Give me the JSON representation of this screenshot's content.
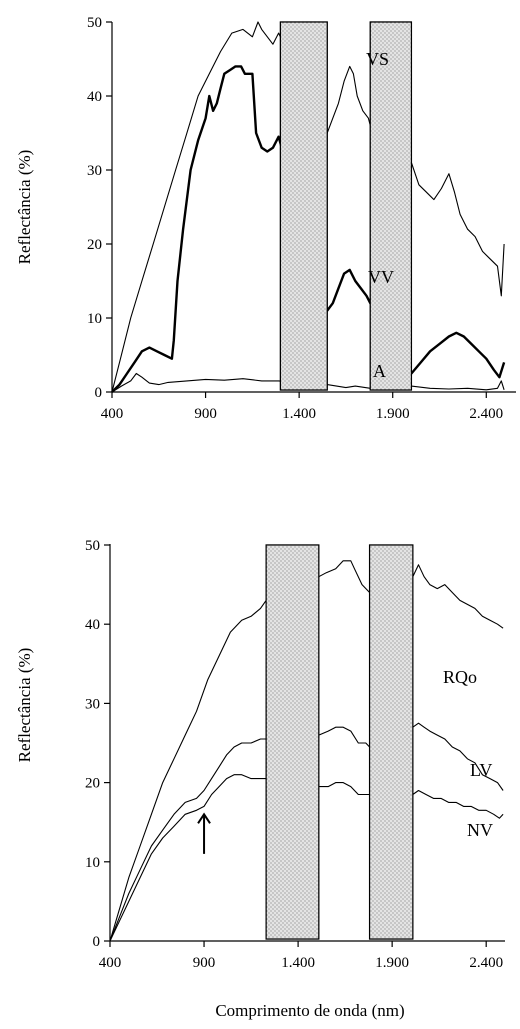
{
  "chart_data": [
    {
      "type": "line",
      "ylabel": "Reflectância (%)",
      "xlabel": "",
      "xlim": [
        400,
        2500
      ],
      "ylim": [
        0,
        50
      ],
      "xticks": [
        400,
        900,
        1400,
        1900,
        2400
      ],
      "xtick_labels": [
        "400",
        "900",
        "1.400",
        "1.900",
        "2.400"
      ],
      "yticks": [
        0,
        10,
        20,
        30,
        40,
        50
      ],
      "ytick_labels": [
        "0",
        "10",
        "20",
        "30",
        "40",
        "50"
      ],
      "absorption_bands": [
        [
          1300,
          1550
        ],
        [
          1780,
          2000
        ]
      ],
      "series": [
        {
          "name": "VS",
          "style": "thin",
          "x": [
            400,
            450,
            500,
            560,
            620,
            680,
            740,
            800,
            860,
            920,
            980,
            1040,
            1100,
            1150,
            1180,
            1200,
            1230,
            1260,
            1290,
            1550,
            1580,
            1610,
            1640,
            1670,
            1690,
            1710,
            1740,
            1770,
            1780,
            2000,
            2040,
            2080,
            2120,
            2160,
            2200,
            2230,
            2260,
            2300,
            2340,
            2380,
            2420,
            2460,
            2480,
            2495
          ],
          "y": [
            0,
            5,
            10,
            15,
            20,
            25,
            30,
            35,
            40,
            43,
            46,
            48.5,
            49,
            48,
            50,
            49,
            48,
            47,
            48.5,
            35,
            37,
            39,
            42,
            44,
            43,
            40,
            38,
            37,
            36,
            31,
            28,
            27,
            26,
            27.5,
            29.5,
            27,
            24,
            22,
            21,
            19,
            18,
            17,
            13,
            20
          ]
        },
        {
          "name": "VV",
          "style": "thick",
          "x": [
            400,
            440,
            480,
            520,
            560,
            600,
            640,
            680,
            720,
            730,
            750,
            780,
            820,
            860,
            900,
            920,
            940,
            960,
            980,
            1000,
            1030,
            1060,
            1090,
            1110,
            1150,
            1170,
            1200,
            1230,
            1260,
            1290,
            1550,
            1580,
            1610,
            1640,
            1670,
            1700,
            1730,
            1760,
            1780,
            2000,
            2050,
            2100,
            2150,
            2200,
            2240,
            2280,
            2320,
            2360,
            2400,
            2440,
            2470,
            2495
          ],
          "y": [
            0,
            1,
            2.5,
            4,
            5.5,
            6,
            5.5,
            5,
            4.5,
            7,
            15,
            22,
            30,
            34,
            37,
            40,
            38,
            39,
            41,
            43,
            43.5,
            44,
            44,
            43,
            43,
            35,
            33,
            32.5,
            33,
            34.5,
            11,
            12,
            14,
            16,
            16.5,
            15,
            14,
            13,
            12,
            2.5,
            4,
            5.5,
            6.5,
            7.5,
            8,
            7.5,
            6.5,
            5.5,
            4.5,
            3,
            2,
            4
          ]
        },
        {
          "name": "A",
          "style": "thin",
          "x": [
            400,
            450,
            500,
            530,
            560,
            600,
            650,
            700,
            800,
            900,
            1000,
            1100,
            1200,
            1290,
            1550,
            1600,
            1650,
            1700,
            1780,
            2000,
            2100,
            2200,
            2300,
            2400,
            2460,
            2480,
            2495
          ],
          "y": [
            0,
            0.8,
            1.5,
            2.5,
            2,
            1.2,
            1,
            1.3,
            1.5,
            1.7,
            1.6,
            1.8,
            1.5,
            1.5,
            1,
            0.8,
            0.6,
            0.8,
            0.5,
            0.8,
            0.5,
            0.4,
            0.5,
            0.3,
            0.5,
            1.5,
            0.3
          ]
        }
      ]
    },
    {
      "type": "line",
      "ylabel": "Reflectância (%)",
      "xlabel": "Comprimento de onda (nm)",
      "xlim": [
        400,
        2500
      ],
      "ylim": [
        0,
        50
      ],
      "xticks": [
        400,
        900,
        1400,
        1900,
        2400
      ],
      "xtick_labels": [
        "400",
        "900",
        "1.400",
        "1.900",
        "2.400"
      ],
      "yticks": [
        0,
        10,
        20,
        30,
        40,
        50
      ],
      "ytick_labels": [
        "0",
        "10",
        "20",
        "30",
        "40",
        "50"
      ],
      "absorption_bands": [
        [
          1230,
          1510
        ],
        [
          1780,
          2010
        ]
      ],
      "arrow_annotation": {
        "x": 900,
        "y_tip": 16,
        "y_tail": 11
      },
      "series": [
        {
          "name": "RQo",
          "style": "thin",
          "x": [
            400,
            450,
            500,
            560,
            620,
            680,
            740,
            800,
            860,
            920,
            980,
            1040,
            1080,
            1100,
            1150,
            1200,
            1230,
            1510,
            1550,
            1600,
            1640,
            1680,
            1700,
            1740,
            1780,
            2010,
            2040,
            2070,
            2100,
            2140,
            2180,
            2220,
            2260,
            2300,
            2340,
            2380,
            2420,
            2460,
            2490
          ],
          "y": [
            0,
            4,
            8,
            12,
            16,
            20,
            23,
            26,
            29,
            33,
            36,
            39,
            40,
            40.5,
            41,
            42,
            43,
            46,
            46.5,
            47,
            48,
            48,
            47,
            45,
            44,
            46,
            47.5,
            46,
            45,
            44.5,
            45,
            44,
            43,
            42.5,
            42,
            41,
            40.5,
            40,
            39.5
          ]
        },
        {
          "name": "LV",
          "style": "thin",
          "x": [
            400,
            450,
            500,
            560,
            620,
            680,
            740,
            800,
            860,
            900,
            940,
            980,
            1020,
            1060,
            1100,
            1150,
            1200,
            1230,
            1510,
            1560,
            1600,
            1640,
            1680,
            1720,
            1760,
            1780,
            2010,
            2040,
            2070,
            2100,
            2140,
            2180,
            2220,
            2260,
            2300,
            2340,
            2380,
            2420,
            2460,
            2490
          ],
          "y": [
            0,
            3,
            6,
            9,
            12,
            14,
            16,
            17.5,
            18,
            19,
            20.5,
            22,
            23.5,
            24.5,
            25,
            25,
            25.5,
            25.5,
            26,
            26.5,
            27,
            27,
            26.5,
            25,
            25,
            24.5,
            27,
            27.5,
            27,
            26.5,
            26,
            25.5,
            24.5,
            24,
            23,
            22.5,
            21,
            20.5,
            20,
            19
          ]
        },
        {
          "name": "NV",
          "style": "thin",
          "x": [
            400,
            450,
            500,
            560,
            620,
            680,
            740,
            800,
            860,
            900,
            940,
            980,
            1020,
            1060,
            1100,
            1150,
            1200,
            1230,
            1510,
            1560,
            1600,
            1640,
            1680,
            1720,
            1760,
            1780,
            2010,
            2040,
            2080,
            2120,
            2160,
            2200,
            2240,
            2280,
            2320,
            2360,
            2400,
            2440,
            2470,
            2490
          ],
          "y": [
            0,
            2.5,
            5,
            8,
            11,
            13,
            14.5,
            16,
            16.5,
            17,
            18.5,
            19.5,
            20.5,
            21,
            21,
            20.5,
            20.5,
            20.5,
            19.5,
            19.5,
            20,
            20,
            19.5,
            18.5,
            18.5,
            18.5,
            18.5,
            19,
            18.5,
            18,
            18,
            17.5,
            17.5,
            17,
            17,
            16.5,
            16.5,
            16,
            15.5,
            16
          ]
        }
      ]
    }
  ]
}
